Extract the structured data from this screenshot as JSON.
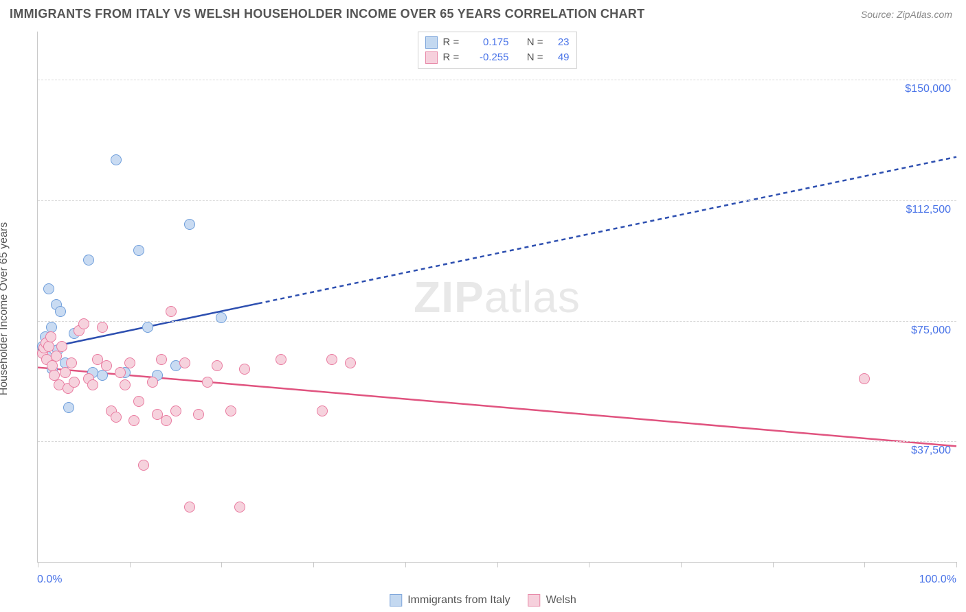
{
  "title": "IMMIGRANTS FROM ITALY VS WELSH HOUSEHOLDER INCOME OVER 65 YEARS CORRELATION CHART",
  "source": "Source: ZipAtlas.com",
  "watermark_bold": "ZIP",
  "watermark_rest": "atlas",
  "chart": {
    "type": "scatter",
    "background_color": "#ffffff",
    "grid_color": "#d8d8d8",
    "axis_color": "#c9c9c9",
    "x": {
      "min": 0,
      "max": 100,
      "left_label": "0.0%",
      "right_label": "100.0%",
      "ticks_pct": [
        0,
        10,
        20,
        30,
        40,
        50,
        60,
        70,
        80,
        90,
        100
      ],
      "label_color": "#4a74e8"
    },
    "y": {
      "min": 0,
      "max": 165000,
      "label": "Householder Income Over 65 years",
      "label_color": "#555555",
      "ticks": [
        {
          "value": 37500,
          "label": "$37,500"
        },
        {
          "value": 75000,
          "label": "$75,000"
        },
        {
          "value": 112500,
          "label": "$112,500"
        },
        {
          "value": 150000,
          "label": "$150,000"
        }
      ]
    },
    "series": [
      {
        "id": "italy",
        "name": "Immigrants from Italy",
        "fill": "#c9dbf2",
        "stroke": "#6f9edb",
        "swatch_fill": "#c3d8f0",
        "swatch_stroke": "#7fa7db",
        "trend": {
          "color": "#2d4fb0",
          "y_at_x0": 66000,
          "y_at_x100": 126000,
          "solid_until_x": 24,
          "stroke_width": 2.5,
          "dash": "6,5"
        },
        "legend": {
          "r_label": "R =",
          "r_value": "0.175",
          "n_label": "N =",
          "n_value": "23"
        },
        "points": [
          {
            "x": 0.5,
            "y": 67000
          },
          {
            "x": 0.8,
            "y": 70000
          },
          {
            "x": 1.0,
            "y": 64000
          },
          {
            "x": 1.2,
            "y": 85000
          },
          {
            "x": 1.5,
            "y": 73000
          },
          {
            "x": 1.6,
            "y": 60000
          },
          {
            "x": 2.0,
            "y": 80000
          },
          {
            "x": 2.2,
            "y": 66000
          },
          {
            "x": 2.5,
            "y": 78000
          },
          {
            "x": 3.0,
            "y": 62000
          },
          {
            "x": 3.4,
            "y": 48000
          },
          {
            "x": 4.0,
            "y": 71000
          },
          {
            "x": 5.5,
            "y": 94000
          },
          {
            "x": 6.0,
            "y": 59000
          },
          {
            "x": 7.0,
            "y": 58000
          },
          {
            "x": 8.5,
            "y": 125000
          },
          {
            "x": 9.5,
            "y": 59000
          },
          {
            "x": 11.0,
            "y": 97000
          },
          {
            "x": 12.0,
            "y": 73000
          },
          {
            "x": 13.0,
            "y": 58000
          },
          {
            "x": 15.0,
            "y": 61000
          },
          {
            "x": 16.5,
            "y": 105000
          },
          {
            "x": 20.0,
            "y": 76000
          }
        ]
      },
      {
        "id": "welsh",
        "name": "Welsh",
        "fill": "#f6d2dd",
        "stroke": "#e97ba0",
        "swatch_fill": "#f6d0dc",
        "swatch_stroke": "#e88aa9",
        "trend": {
          "color": "#e0537f",
          "y_at_x0": 60500,
          "y_at_x100": 36000,
          "solid_until_x": 100,
          "stroke_width": 2.5,
          "dash": ""
        },
        "legend": {
          "r_label": "R =",
          "r_value": "-0.255",
          "n_label": "N =",
          "n_value": "49"
        },
        "points": [
          {
            "x": 0.5,
            "y": 65000
          },
          {
            "x": 0.7,
            "y": 66500
          },
          {
            "x": 0.9,
            "y": 68000
          },
          {
            "x": 1.0,
            "y": 63000
          },
          {
            "x": 1.2,
            "y": 67000
          },
          {
            "x": 1.4,
            "y": 70000
          },
          {
            "x": 1.6,
            "y": 61000
          },
          {
            "x": 1.8,
            "y": 58000
          },
          {
            "x": 2.0,
            "y": 64000
          },
          {
            "x": 2.3,
            "y": 55000
          },
          {
            "x": 2.6,
            "y": 67000
          },
          {
            "x": 3.0,
            "y": 59000
          },
          {
            "x": 3.3,
            "y": 54000
          },
          {
            "x": 3.7,
            "y": 62000
          },
          {
            "x": 4.0,
            "y": 56000
          },
          {
            "x": 4.5,
            "y": 72000
          },
          {
            "x": 5.0,
            "y": 74000
          },
          {
            "x": 5.5,
            "y": 57000
          },
          {
            "x": 6.0,
            "y": 55000
          },
          {
            "x": 6.5,
            "y": 63000
          },
          {
            "x": 7.0,
            "y": 73000
          },
          {
            "x": 7.5,
            "y": 61000
          },
          {
            "x": 8.0,
            "y": 47000
          },
          {
            "x": 8.5,
            "y": 45000
          },
          {
            "x": 9.0,
            "y": 59000
          },
          {
            "x": 9.5,
            "y": 55000
          },
          {
            "x": 10.0,
            "y": 62000
          },
          {
            "x": 10.5,
            "y": 44000
          },
          {
            "x": 11.0,
            "y": 50000
          },
          {
            "x": 11.5,
            "y": 30000
          },
          {
            "x": 12.5,
            "y": 56000
          },
          {
            "x": 13.0,
            "y": 46000
          },
          {
            "x": 13.5,
            "y": 63000
          },
          {
            "x": 14.0,
            "y": 44000
          },
          {
            "x": 14.5,
            "y": 78000
          },
          {
            "x": 15.0,
            "y": 47000
          },
          {
            "x": 16.0,
            "y": 62000
          },
          {
            "x": 16.5,
            "y": 17000
          },
          {
            "x": 17.5,
            "y": 46000
          },
          {
            "x": 18.5,
            "y": 56000
          },
          {
            "x": 19.5,
            "y": 61000
          },
          {
            "x": 21.0,
            "y": 47000
          },
          {
            "x": 22.0,
            "y": 17000
          },
          {
            "x": 22.5,
            "y": 60000
          },
          {
            "x": 26.5,
            "y": 63000
          },
          {
            "x": 31.0,
            "y": 47000
          },
          {
            "x": 32.0,
            "y": 63000
          },
          {
            "x": 34.0,
            "y": 62000
          },
          {
            "x": 90.0,
            "y": 57000
          }
        ]
      }
    ]
  }
}
